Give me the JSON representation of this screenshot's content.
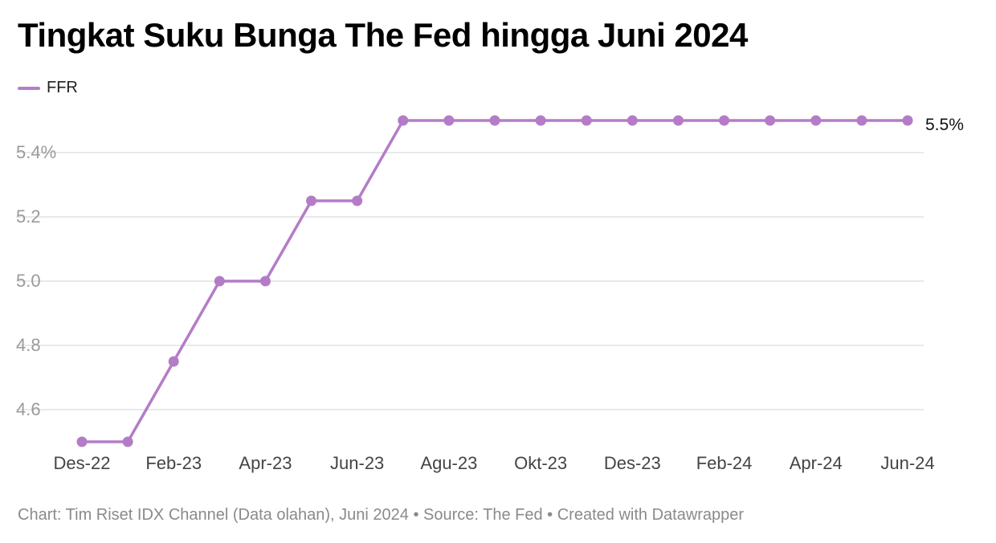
{
  "chart_data": {
    "type": "line",
    "title": "Tingkat Suku Bunga The Fed hingga Juni 2024",
    "x": [
      "Des-22",
      "Jan-23",
      "Feb-23",
      "Mar-23",
      "Apr-23",
      "Mei-23",
      "Jun-23",
      "Jul-23",
      "Agu-23",
      "Sep-23",
      "Okt-23",
      "Nov-23",
      "Des-23",
      "Jan-24",
      "Feb-24",
      "Mar-24",
      "Apr-24",
      "Mei-24",
      "Jun-24"
    ],
    "x_tick_labels": [
      "Des-22",
      "Feb-23",
      "Apr-23",
      "Jun-23",
      "Agu-23",
      "Okt-23",
      "Des-23",
      "Feb-24",
      "Apr-24",
      "Jun-24"
    ],
    "series": [
      {
        "name": "FFR",
        "color": "#b47cc7",
        "values": [
          4.5,
          4.5,
          4.75,
          5.0,
          5.0,
          5.25,
          5.25,
          5.5,
          5.5,
          5.5,
          5.5,
          5.5,
          5.5,
          5.5,
          5.5,
          5.5,
          5.5,
          5.5,
          5.5
        ]
      }
    ],
    "y_ticks": [
      {
        "value": 4.6,
        "label": "4.6"
      },
      {
        "value": 4.8,
        "label": "4.8"
      },
      {
        "value": 5.0,
        "label": "5.0"
      },
      {
        "value": 5.2,
        "label": "5.2"
      },
      {
        "value": 5.4,
        "label": "5.4%"
      }
    ],
    "ylim": [
      4.5,
      5.5
    ],
    "end_label": "5.5%",
    "grid": true,
    "legend_position": "top-left",
    "xlabel": "",
    "ylabel": ""
  },
  "footer": "Chart: Tim Riset IDX Channel (Data olahan), Juni 2024 • Source: The Fed • Created with Datawrapper"
}
